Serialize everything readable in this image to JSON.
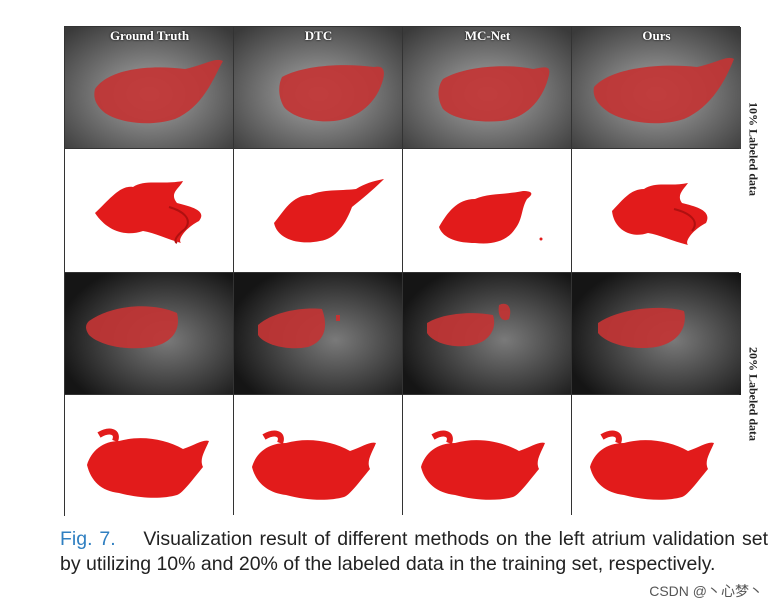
{
  "figure": {
    "column_titles": [
      "Ground Truth",
      "DTC",
      "MC-Net",
      "Ours"
    ],
    "row_labels": [
      "10% Labeled data",
      "20% Labeled data"
    ],
    "colors": {
      "segmentation": "#e21b1b",
      "overlay": "#c23434",
      "border": "#333333"
    }
  },
  "caption": {
    "label": "Fig. 7.",
    "text": "Visualization result of different methods on the left atrium validation set by utilizing 10% and 20% of the labeled data in the training set, respectively."
  },
  "watermark": "CSDN @丶心梦丶"
}
